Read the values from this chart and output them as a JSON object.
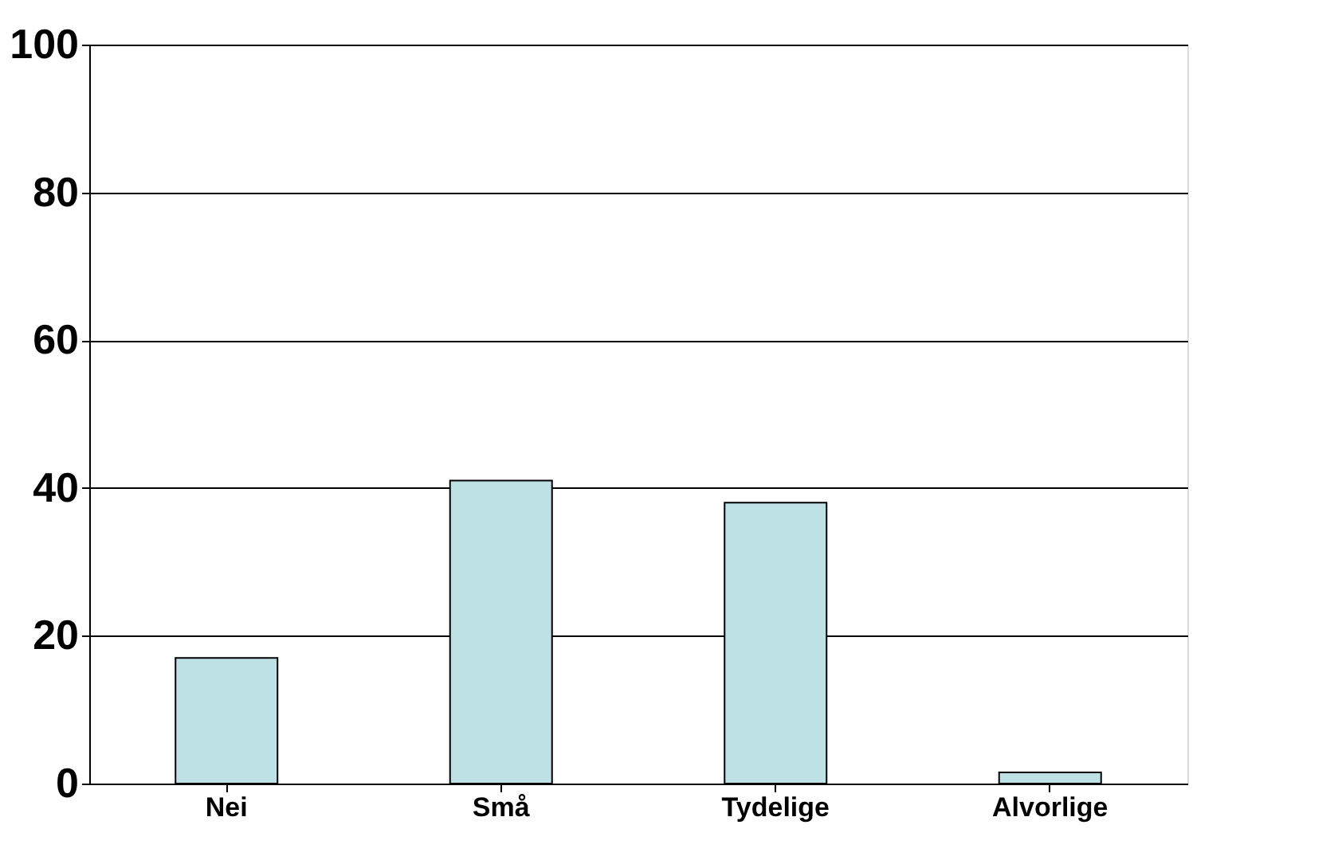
{
  "chart_data": {
    "type": "bar",
    "categories": [
      "Nei",
      "Små",
      "Tydelige",
      "Alvorlige"
    ],
    "series": [
      {
        "color": "#bde1e4",
        "values": [
          17,
          41,
          38,
          1.5
        ]
      }
    ],
    "ylim": [
      0,
      100
    ],
    "yticks": [
      0,
      20,
      40,
      60,
      80,
      100
    ],
    "grid": "y"
  }
}
